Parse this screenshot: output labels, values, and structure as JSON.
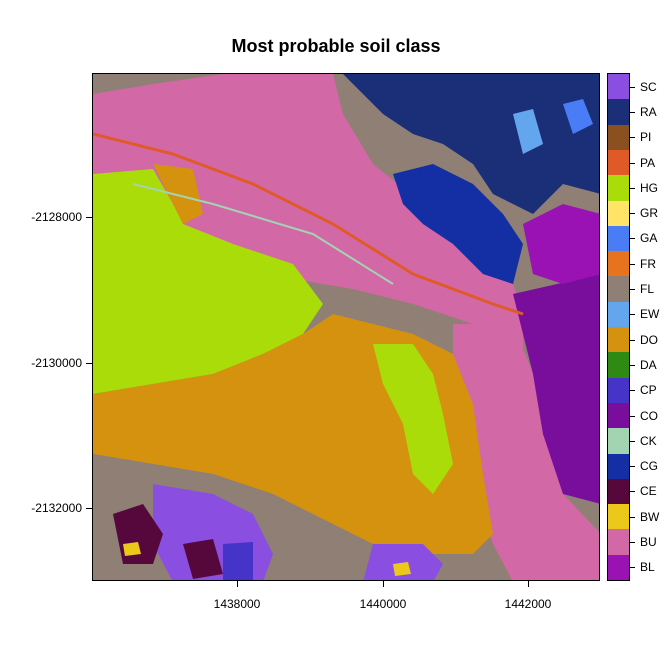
{
  "title": "Most probable soil class",
  "map": {
    "type": "raster",
    "x_ticks": [
      "1438000",
      "1440000",
      "1442000"
    ],
    "y_ticks": [
      "-2128000",
      "-2130000",
      "-2132000"
    ],
    "x_range": [
      1436000,
      1443000
    ],
    "y_range": [
      -2132900,
      -2125900
    ]
  },
  "legend": {
    "items": [
      {
        "label": "SC",
        "color": "#8a4fe0"
      },
      {
        "label": "RA",
        "color": "#1b2e78"
      },
      {
        "label": "PI",
        "color": "#8b5020"
      },
      {
        "label": "PA",
        "color": "#e05a28"
      },
      {
        "label": "HG",
        "color": "#aadc0a"
      },
      {
        "label": "GR",
        "color": "#ffe466"
      },
      {
        "label": "GA",
        "color": "#4a7cf5"
      },
      {
        "label": "FR",
        "color": "#e8731e"
      },
      {
        "label": "FL",
        "color": "#8f7f75"
      },
      {
        "label": "EW",
        "color": "#64a6ee"
      },
      {
        "label": "DO",
        "color": "#d4920e"
      },
      {
        "label": "DA",
        "color": "#2e8a12"
      },
      {
        "label": "CP",
        "color": "#4633c8"
      },
      {
        "label": "CO",
        "color": "#7a0e9c"
      },
      {
        "label": "CK",
        "color": "#a3d4b2"
      },
      {
        "label": "CG",
        "color": "#142ea3"
      },
      {
        "label": "CE",
        "color": "#56083c"
      },
      {
        "label": "BW",
        "color": "#ecc81a"
      },
      {
        "label": "BU",
        "color": "#d368a6"
      },
      {
        "label": "BL",
        "color": "#9a12b4"
      }
    ]
  }
}
